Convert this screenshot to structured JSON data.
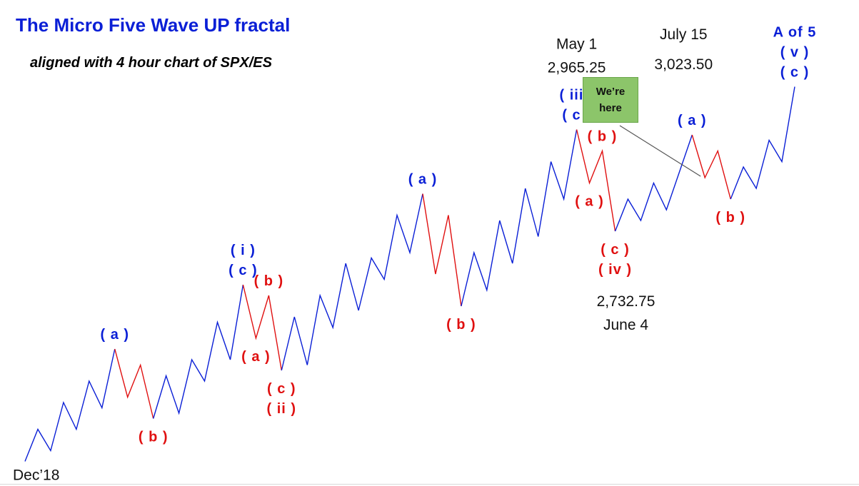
{
  "title": "The Micro Five Wave UP fractal",
  "subtitle": "aligned with 4 hour chart of SPX/ES",
  "callout": "We’re\nhere",
  "colors": {
    "impulse": "#0a1fd6",
    "correction": "#e01010",
    "callout_bg": "#8cc56a",
    "text": "#111111"
  },
  "chart_data": {
    "type": "line",
    "segments": [
      {
        "color": "blue",
        "points": [
          [
            0,
            18
          ],
          [
            1,
            78
          ],
          [
            2,
            38
          ],
          [
            3,
            128
          ],
          [
            4,
            78
          ],
          [
            5,
            168
          ],
          [
            6,
            118
          ],
          [
            7,
            228
          ]
        ]
      },
      {
        "color": "red",
        "points": [
          [
            7,
            228
          ],
          [
            8,
            138
          ],
          [
            9,
            198
          ],
          [
            10,
            98
          ]
        ]
      },
      {
        "color": "blue",
        "points": [
          [
            10,
            98
          ],
          [
            11,
            178
          ],
          [
            12,
            108
          ],
          [
            13,
            208
          ],
          [
            14,
            168
          ],
          [
            15,
            278
          ],
          [
            16,
            208
          ],
          [
            17,
            348
          ]
        ]
      },
      {
        "color": "red",
        "points": [
          [
            17,
            348
          ],
          [
            18,
            248
          ],
          [
            19,
            328
          ],
          [
            20,
            188
          ]
        ]
      },
      {
        "color": "blue",
        "points": [
          [
            20,
            188
          ],
          [
            21,
            288
          ],
          [
            22,
            198
          ],
          [
            23,
            328
          ],
          [
            24,
            268
          ],
          [
            25,
            388
          ],
          [
            26,
            300
          ],
          [
            27,
            398
          ],
          [
            28,
            358
          ],
          [
            29,
            478
          ],
          [
            30,
            408
          ],
          [
            31,
            518
          ]
        ]
      },
      {
        "color": "red",
        "points": [
          [
            31,
            518
          ],
          [
            32,
            368
          ],
          [
            33,
            478
          ],
          [
            34,
            308
          ]
        ]
      },
      {
        "color": "blue",
        "points": [
          [
            34,
            308
          ],
          [
            35,
            408
          ],
          [
            36,
            338
          ],
          [
            37,
            468
          ],
          [
            38,
            388
          ],
          [
            39,
            528
          ],
          [
            40,
            438
          ],
          [
            41,
            578
          ],
          [
            42,
            508
          ],
          [
            43,
            638
          ]
        ]
      },
      {
        "color": "red",
        "points": [
          [
            43,
            638
          ],
          [
            44,
            538
          ],
          [
            45,
            598
          ],
          [
            46,
            448
          ]
        ]
      },
      {
        "color": "blue",
        "points": [
          [
            46,
            448
          ],
          [
            47,
            508
          ],
          [
            48,
            468
          ],
          [
            49,
            538
          ],
          [
            50,
            488
          ],
          [
            51,
            558
          ],
          [
            52,
            628
          ]
        ]
      },
      {
        "color": "red",
        "points": [
          [
            52,
            628
          ],
          [
            53,
            548
          ],
          [
            54,
            598
          ],
          [
            55,
            508
          ]
        ]
      },
      {
        "color": "blue",
        "points": [
          [
            55,
            508
          ],
          [
            56,
            568
          ],
          [
            57,
            528
          ],
          [
            58,
            618
          ],
          [
            59,
            578
          ],
          [
            60,
            718
          ]
        ]
      }
    ],
    "wave_labels": [
      {
        "x": 7,
        "y": 228,
        "pos": "above",
        "color": "blue",
        "lines": [
          "( a )"
        ]
      },
      {
        "x": 10,
        "y": 98,
        "pos": "below",
        "color": "red",
        "lines": [
          "( b )"
        ]
      },
      {
        "x": 17,
        "y": 348,
        "pos": "above",
        "color": "blue",
        "lines": [
          "( i )",
          "( c )"
        ]
      },
      {
        "x": 18,
        "y": 248,
        "pos": "below",
        "color": "red",
        "lines": [
          "( a )"
        ]
      },
      {
        "x": 19,
        "y": 328,
        "pos": "above",
        "color": "red",
        "lines": [
          "( b )"
        ]
      },
      {
        "x": 20,
        "y": 188,
        "pos": "below",
        "color": "red",
        "lines": [
          "( c )",
          "( ii )"
        ]
      },
      {
        "x": 31,
        "y": 518,
        "pos": "above",
        "color": "blue",
        "lines": [
          "( a )"
        ]
      },
      {
        "x": 34,
        "y": 308,
        "pos": "below",
        "color": "red",
        "lines": [
          "( b )"
        ]
      },
      {
        "x": 43,
        "y": 638,
        "pos": "above",
        "color": "blue",
        "lines": [
          "( iii )",
          "( c )"
        ]
      },
      {
        "x": 44,
        "y": 538,
        "pos": "below",
        "color": "red",
        "lines": [
          "( a )"
        ]
      },
      {
        "x": 45,
        "y": 598,
        "pos": "above",
        "color": "red",
        "lines": [
          "( b )"
        ]
      },
      {
        "x": 46,
        "y": 448,
        "pos": "below",
        "color": "red",
        "lines": [
          "( c )",
          "( iv )"
        ]
      },
      {
        "x": 52,
        "y": 628,
        "pos": "above",
        "color": "blue",
        "lines": [
          "( a )"
        ]
      },
      {
        "x": 55,
        "y": 508,
        "pos": "below",
        "color": "red",
        "lines": [
          "( b )"
        ]
      },
      {
        "x": 60,
        "y": 718,
        "pos": "above",
        "color": "blue",
        "lines": [
          "A of 5",
          "( v )",
          "( c )"
        ]
      }
    ],
    "annotations": [
      {
        "x": 0,
        "y": 18,
        "pos": "below",
        "lines": [
          "Dec’18"
        ]
      },
      {
        "x": 43,
        "y": 638,
        "pos": "above2",
        "lines": [
          "May 1",
          "2,965.25"
        ]
      },
      {
        "x": 46,
        "y": 448,
        "pos": "below2",
        "lines": [
          "2,732.75",
          "June 4"
        ]
      },
      {
        "x": 52,
        "y": 628,
        "pos": "above2",
        "lines": [
          "July 15",
          "3,023.50"
        ]
      }
    ],
    "xlim": [
      0,
      60
    ],
    "ylim": [
      0,
      720
    ]
  }
}
